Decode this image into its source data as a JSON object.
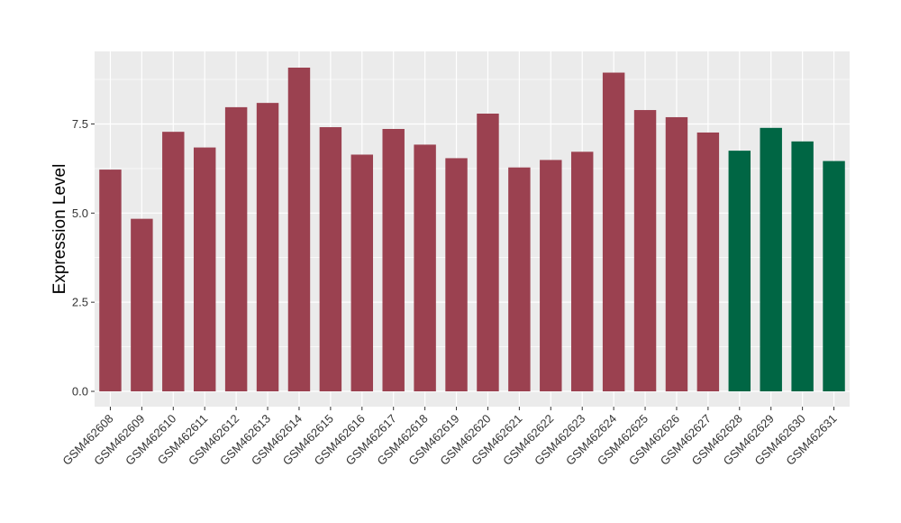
{
  "chart_data": {
    "type": "bar",
    "title": "",
    "xlabel": "",
    "ylabel": "Expression Level",
    "ylim": [
      0,
      9.5
    ],
    "yticks": [
      0.0,
      2.5,
      5.0,
      7.5
    ],
    "ytick_labels": [
      "0.0",
      "2.5",
      "5.0",
      "7.5"
    ],
    "grid": true,
    "legend": "none",
    "categories": [
      "GSM462608",
      "GSM462609",
      "GSM462610",
      "GSM462611",
      "GSM462612",
      "GSM462613",
      "GSM462614",
      "GSM462615",
      "GSM462616",
      "GSM462617",
      "GSM462618",
      "GSM462619",
      "GSM462620",
      "GSM462621",
      "GSM462622",
      "GSM462623",
      "GSM462624",
      "GSM462625",
      "GSM462626",
      "GSM462627",
      "GSM462628",
      "GSM462629",
      "GSM462630",
      "GSM462631"
    ],
    "values": [
      6.22,
      4.84,
      7.28,
      6.84,
      7.97,
      8.09,
      9.08,
      7.41,
      6.64,
      7.36,
      6.92,
      6.54,
      7.79,
      6.28,
      6.49,
      6.72,
      8.94,
      7.89,
      7.69,
      7.26,
      6.75,
      7.39,
      7.01,
      6.46
    ],
    "group_index": [
      0,
      0,
      0,
      0,
      0,
      0,
      0,
      0,
      0,
      0,
      0,
      0,
      0,
      0,
      0,
      0,
      0,
      0,
      0,
      0,
      1,
      1,
      1,
      1
    ],
    "group_colors": [
      "#9b4150",
      "#006644"
    ],
    "panel_background": "#ebebeb",
    "grid_color": "#ffffff"
  }
}
